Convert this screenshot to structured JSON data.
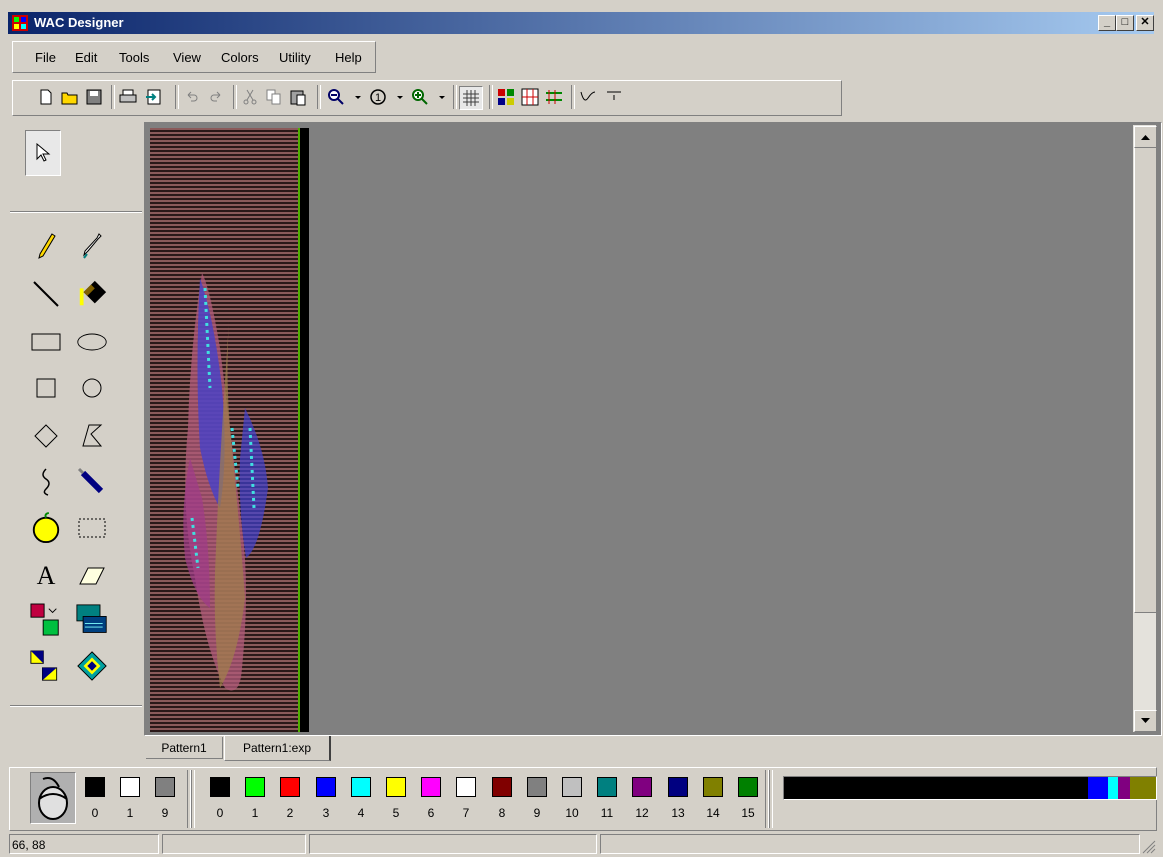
{
  "window": {
    "title": "WAC Designer"
  },
  "menu": [
    "File",
    "Edit",
    "Tools",
    "View",
    "Colors",
    "Utility",
    "Help"
  ],
  "toolbar": {
    "icons": [
      "new-icon",
      "open-icon",
      "save-icon",
      "print-icon",
      "export-icon",
      "undo-icon",
      "redo-icon",
      "cut-icon",
      "copy-icon",
      "paste-icon",
      "zoom-out-icon",
      "actual-size-icon",
      "zoom-in-icon",
      "grid-icon",
      "view-mode-1-icon",
      "view-mode-2-icon",
      "view-mode-3-icon",
      "curve-icon",
      "baseline-icon"
    ]
  },
  "tools": [
    "select-arrow-icon",
    "pencil-icon",
    "eyedropper-icon",
    "line-icon",
    "fill-bucket-icon",
    "rectangle-icon",
    "ellipse-icon",
    "square-icon",
    "circle-icon",
    "diamond-icon",
    "polygon-icon",
    "freehand-curve-icon",
    "spray-icon",
    "apple-icon",
    "marquee-select-icon",
    "text-icon",
    "eraser-icon",
    "copy-pattern-icon",
    "replace-pattern-icon",
    "flip-icon",
    "rotate-icon"
  ],
  "tabs": [
    {
      "label": "Pattern1",
      "active": false
    },
    {
      "label": "Pattern1:exp",
      "active": true
    }
  ],
  "mouse_colors": [
    {
      "num": "0",
      "color": "#000000"
    },
    {
      "num": "1",
      "color": "#ffffff"
    },
    {
      "num": "9",
      "color": "#808080"
    }
  ],
  "palette": [
    {
      "num": "0",
      "color": "#000000"
    },
    {
      "num": "1",
      "color": "#00ff00"
    },
    {
      "num": "2",
      "color": "#ff0000"
    },
    {
      "num": "3",
      "color": "#0000ff"
    },
    {
      "num": "4",
      "color": "#00ffff"
    },
    {
      "num": "5",
      "color": "#ffff00"
    },
    {
      "num": "6",
      "color": "#ff00ff"
    },
    {
      "num": "7",
      "color": "#ffffff"
    },
    {
      "num": "8",
      "color": "#800000"
    },
    {
      "num": "9",
      "color": "#808080"
    },
    {
      "num": "10",
      "color": "#c0c0c0"
    },
    {
      "num": "11",
      "color": "#008080"
    },
    {
      "num": "12",
      "color": "#800080"
    },
    {
      "num": "13",
      "color": "#000080"
    },
    {
      "num": "14",
      "color": "#808000"
    },
    {
      "num": "15",
      "color": "#008000"
    }
  ],
  "color_strip_tail": [
    "#0000ff",
    "#00ffff",
    "#800080",
    "#808000"
  ],
  "status": {
    "coords": "66, 88"
  }
}
